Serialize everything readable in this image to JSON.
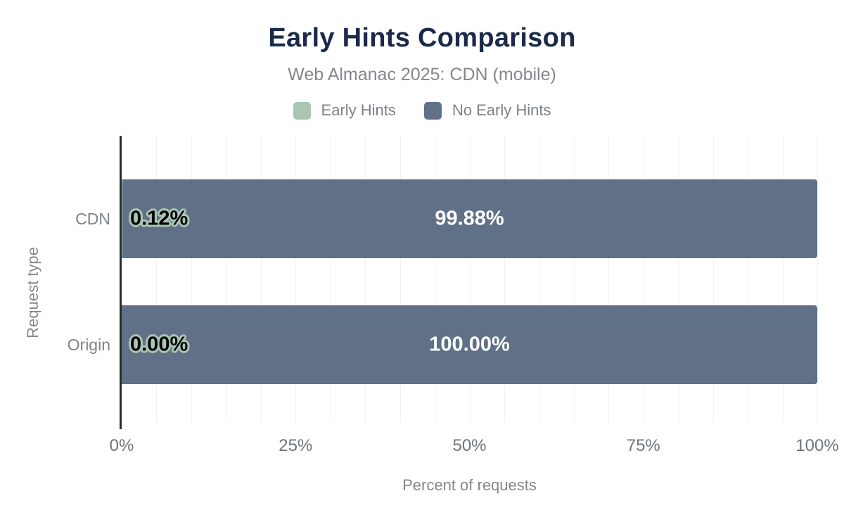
{
  "header": {
    "title": "Early Hints Comparison",
    "subtitle": "Web Almanac 2025: CDN (mobile)"
  },
  "legend": {
    "items": [
      {
        "name": "early-hints",
        "label": "Early Hints",
        "color": "#a9c5b5"
      },
      {
        "name": "no-early-hints",
        "label": "No Early Hints",
        "color": "#5f7087"
      }
    ]
  },
  "chart_data": {
    "type": "bar",
    "orientation": "horizontal",
    "stacked": true,
    "title": "Early Hints Comparison",
    "subtitle": "Web Almanac 2025: CDN (mobile)",
    "categories": [
      "CDN",
      "Origin"
    ],
    "series": [
      {
        "name": "Early Hints",
        "color": "#a9c5b5",
        "values": [
          0.12,
          0.0
        ],
        "labels": [
          "0.12%",
          "0.00%"
        ]
      },
      {
        "name": "No Early Hints",
        "color": "#5f7087",
        "values": [
          99.88,
          100.0
        ],
        "labels": [
          "99.88%",
          "100.00%"
        ]
      }
    ],
    "xlabel": "Percent of requests",
    "ylabel": "Request type",
    "xlim": [
      0,
      100
    ],
    "x_ticks": [
      "0%",
      "25%",
      "50%",
      "75%",
      "100%"
    ],
    "x_tick_values": [
      0,
      25,
      50,
      75,
      100
    ],
    "grid": "vertical",
    "grid_step_percent": 5,
    "legend_position": "top"
  },
  "colors": {
    "early_hints": "#a9c5b5",
    "no_early_hints": "#5f7087",
    "title": "#1b2a4a",
    "label_on_bar": "#ffffff",
    "label_outlined_fill": "#000000",
    "axis_line": "#2b2b2b",
    "gridline": "#f1f1f1",
    "muted_text": "#84878d",
    "background": "#ffffff"
  }
}
